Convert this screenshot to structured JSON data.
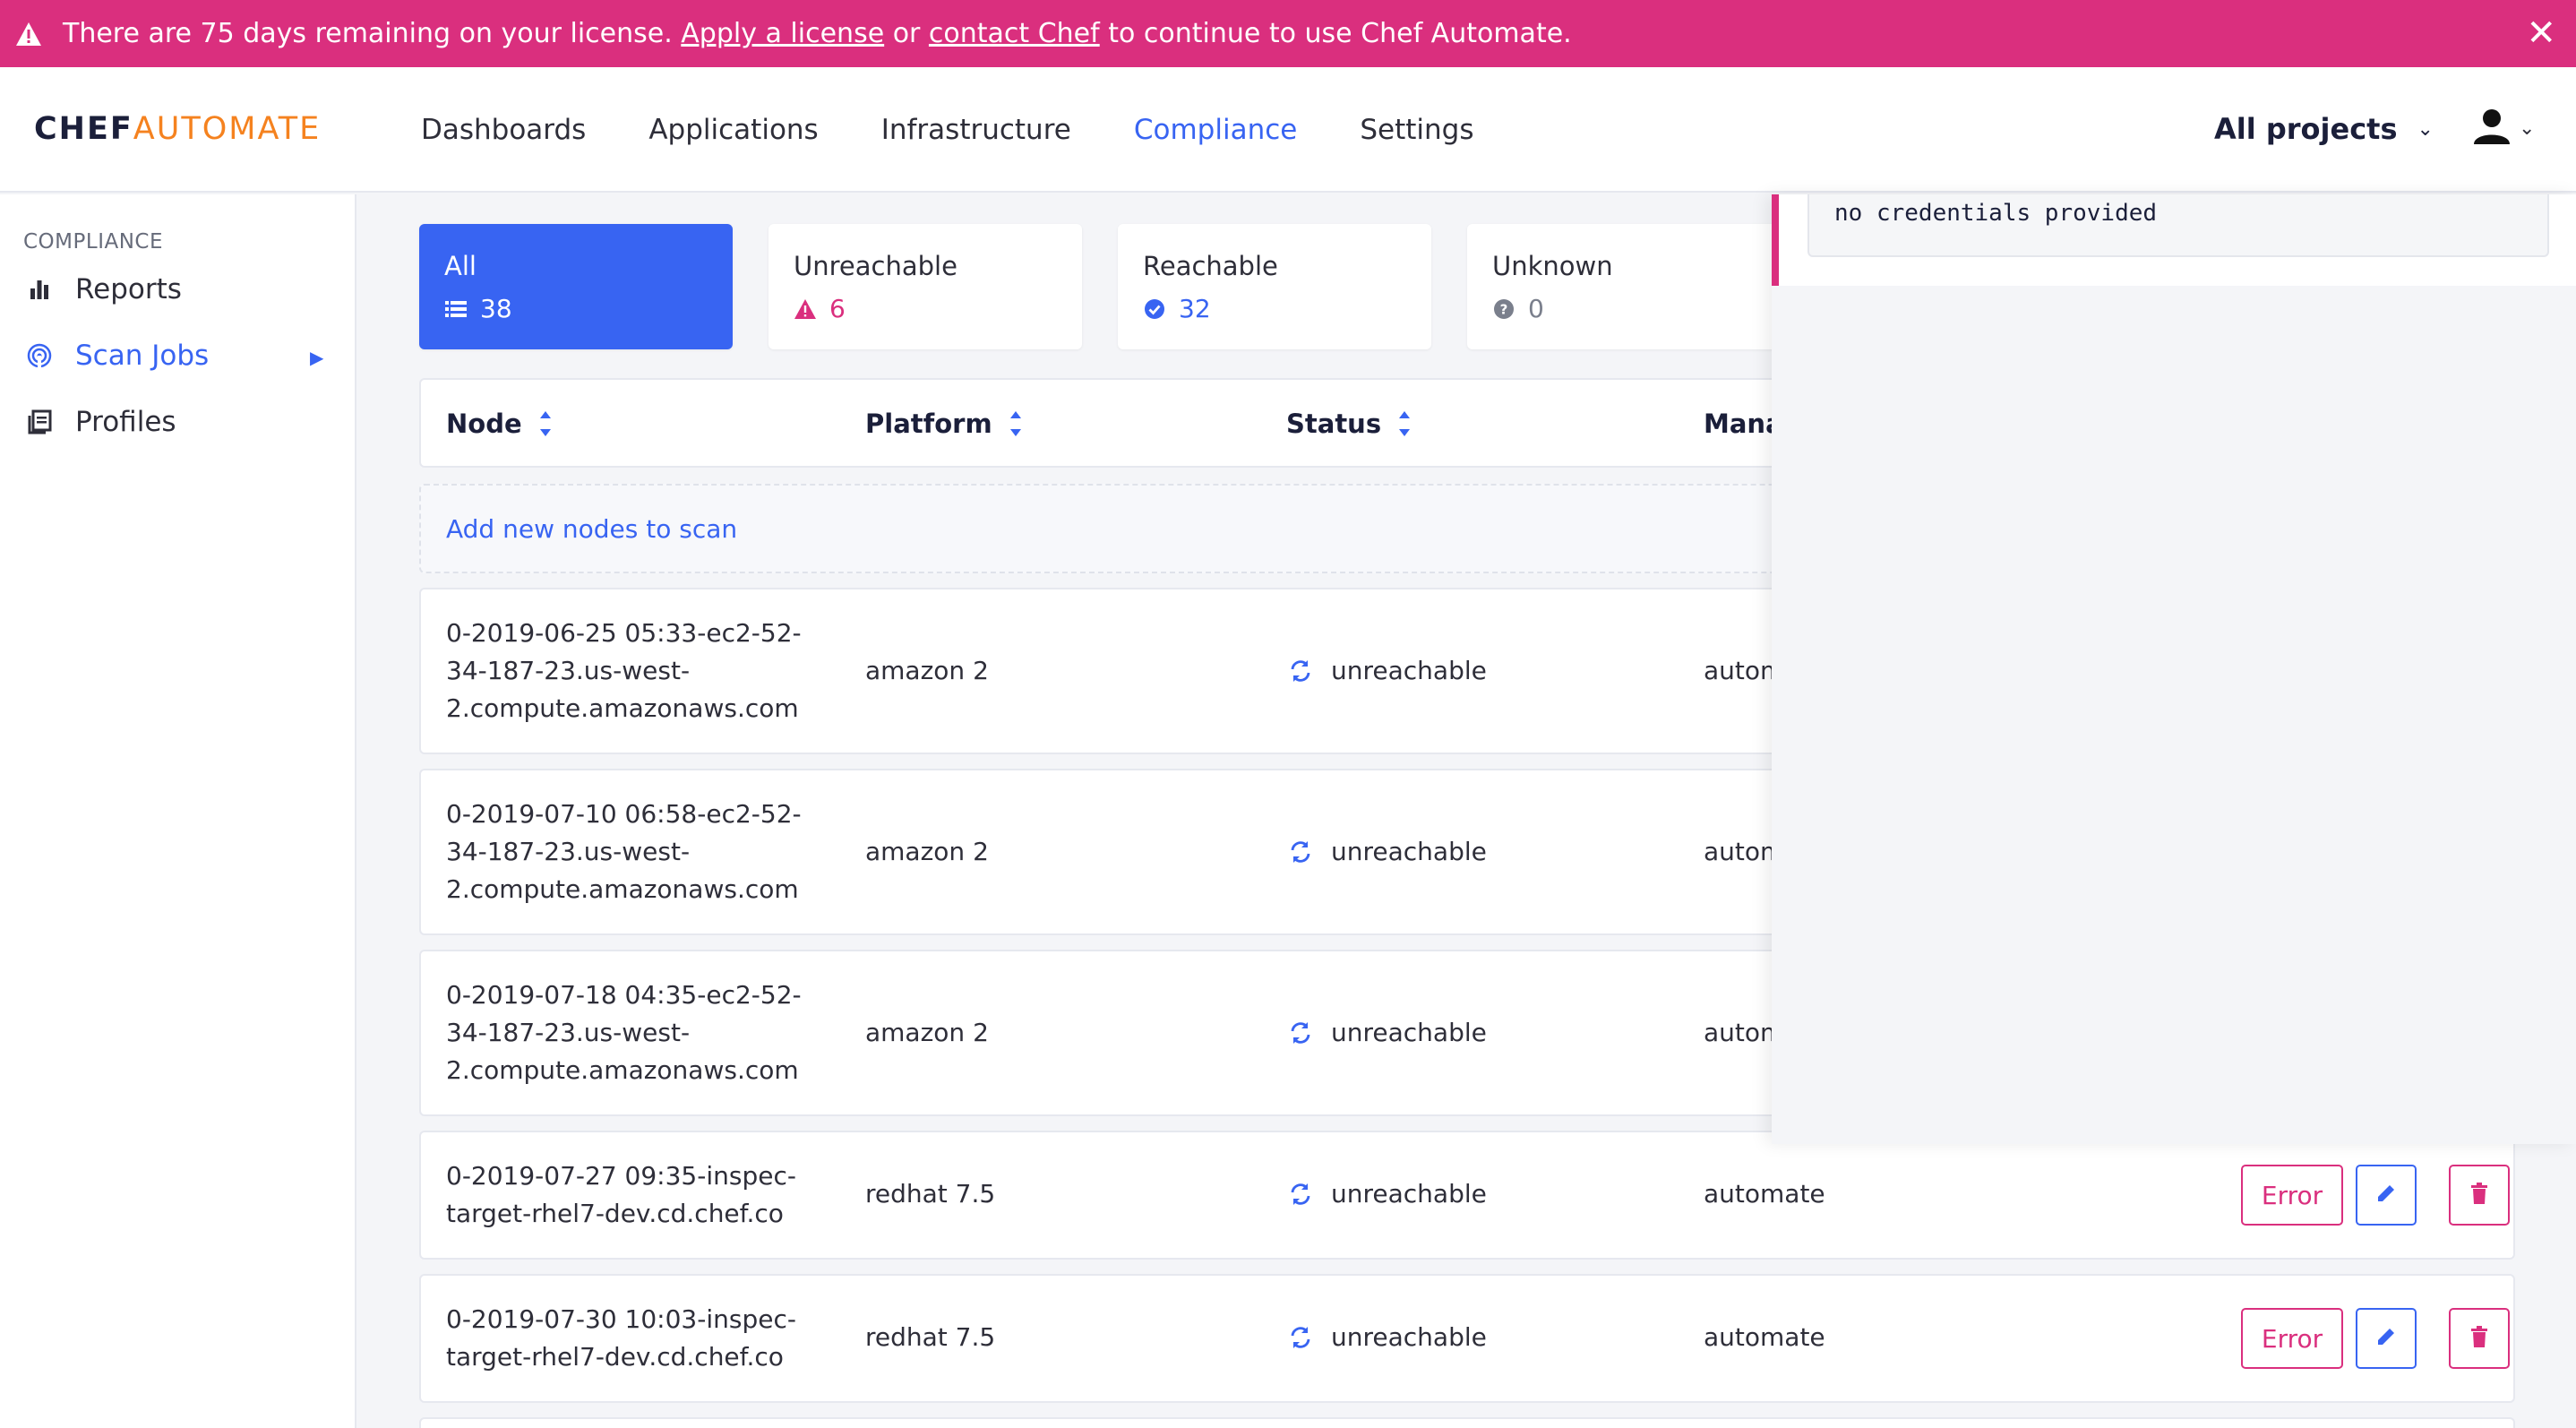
{
  "banner": {
    "text_before": "There are 75 days remaining on your license. ",
    "link_apply": "Apply a license",
    "text_or": " or ",
    "link_contact": "contact Chef",
    "text_after": " to continue to use Chef Automate.",
    "color": "#da2f7e"
  },
  "header": {
    "logo_chef": "CHEF",
    "logo_automate": "AUTOMATE",
    "nav": [
      "Dashboards",
      "Applications",
      "Infrastructure",
      "Compliance",
      "Settings"
    ],
    "active_nav": "Compliance",
    "projects_label": "All projects"
  },
  "sidebar": {
    "section": "COMPLIANCE",
    "items": [
      {
        "label": "Reports",
        "icon": "bar-chart-icon"
      },
      {
        "label": "Scan Jobs",
        "icon": "radar-icon",
        "active": true
      },
      {
        "label": "Profiles",
        "icon": "book-icon"
      }
    ]
  },
  "cards": [
    {
      "title": "All",
      "count": "38",
      "icon": "list-icon"
    },
    {
      "title": "Unreachable",
      "count": "6",
      "icon": "warning-icon",
      "color": "#da2f7e"
    },
    {
      "title": "Reachable",
      "count": "32",
      "icon": "check-circle-icon",
      "color": "#3864f2"
    },
    {
      "title": "Unknown",
      "count": "0",
      "icon": "question-circle-icon",
      "color": "#7a7f8c"
    }
  ],
  "table": {
    "headers": {
      "node": "Node",
      "platform": "Platform",
      "status": "Status",
      "manager": "Manag"
    },
    "add_nodes": "Add new nodes to scan",
    "rows": [
      {
        "node": "0-2019-06-25 05:33-ec2-52-34-187-23.us-west-2.compute.amazonaws.com",
        "platform": "amazon 2",
        "status": "unreachable",
        "manager": "autom"
      },
      {
        "node": "0-2019-07-10 06:58-ec2-52-34-187-23.us-west-2.compute.amazonaws.com",
        "platform": "amazon 2",
        "status": "unreachable",
        "manager": "autom"
      },
      {
        "node": "0-2019-07-18 04:35-ec2-52-34-187-23.us-west-2.compute.amazonaws.com",
        "platform": "amazon 2",
        "status": "unreachable",
        "manager": "autom"
      },
      {
        "node": "0-2019-07-27 09:35-inspec-target-rhel7-dev.cd.chef.co",
        "platform": "redhat 7.5",
        "status": "unreachable",
        "manager": "automate",
        "error_label": "Error"
      },
      {
        "node": "0-2019-07-30 10:03-inspec-target-rhel7-dev.cd.chef.co",
        "platform": "redhat 7.5",
        "status": "unreachable",
        "manager": "automate",
        "error_label": "Error"
      }
    ]
  },
  "panel": {
    "message": "no credentials provided"
  }
}
